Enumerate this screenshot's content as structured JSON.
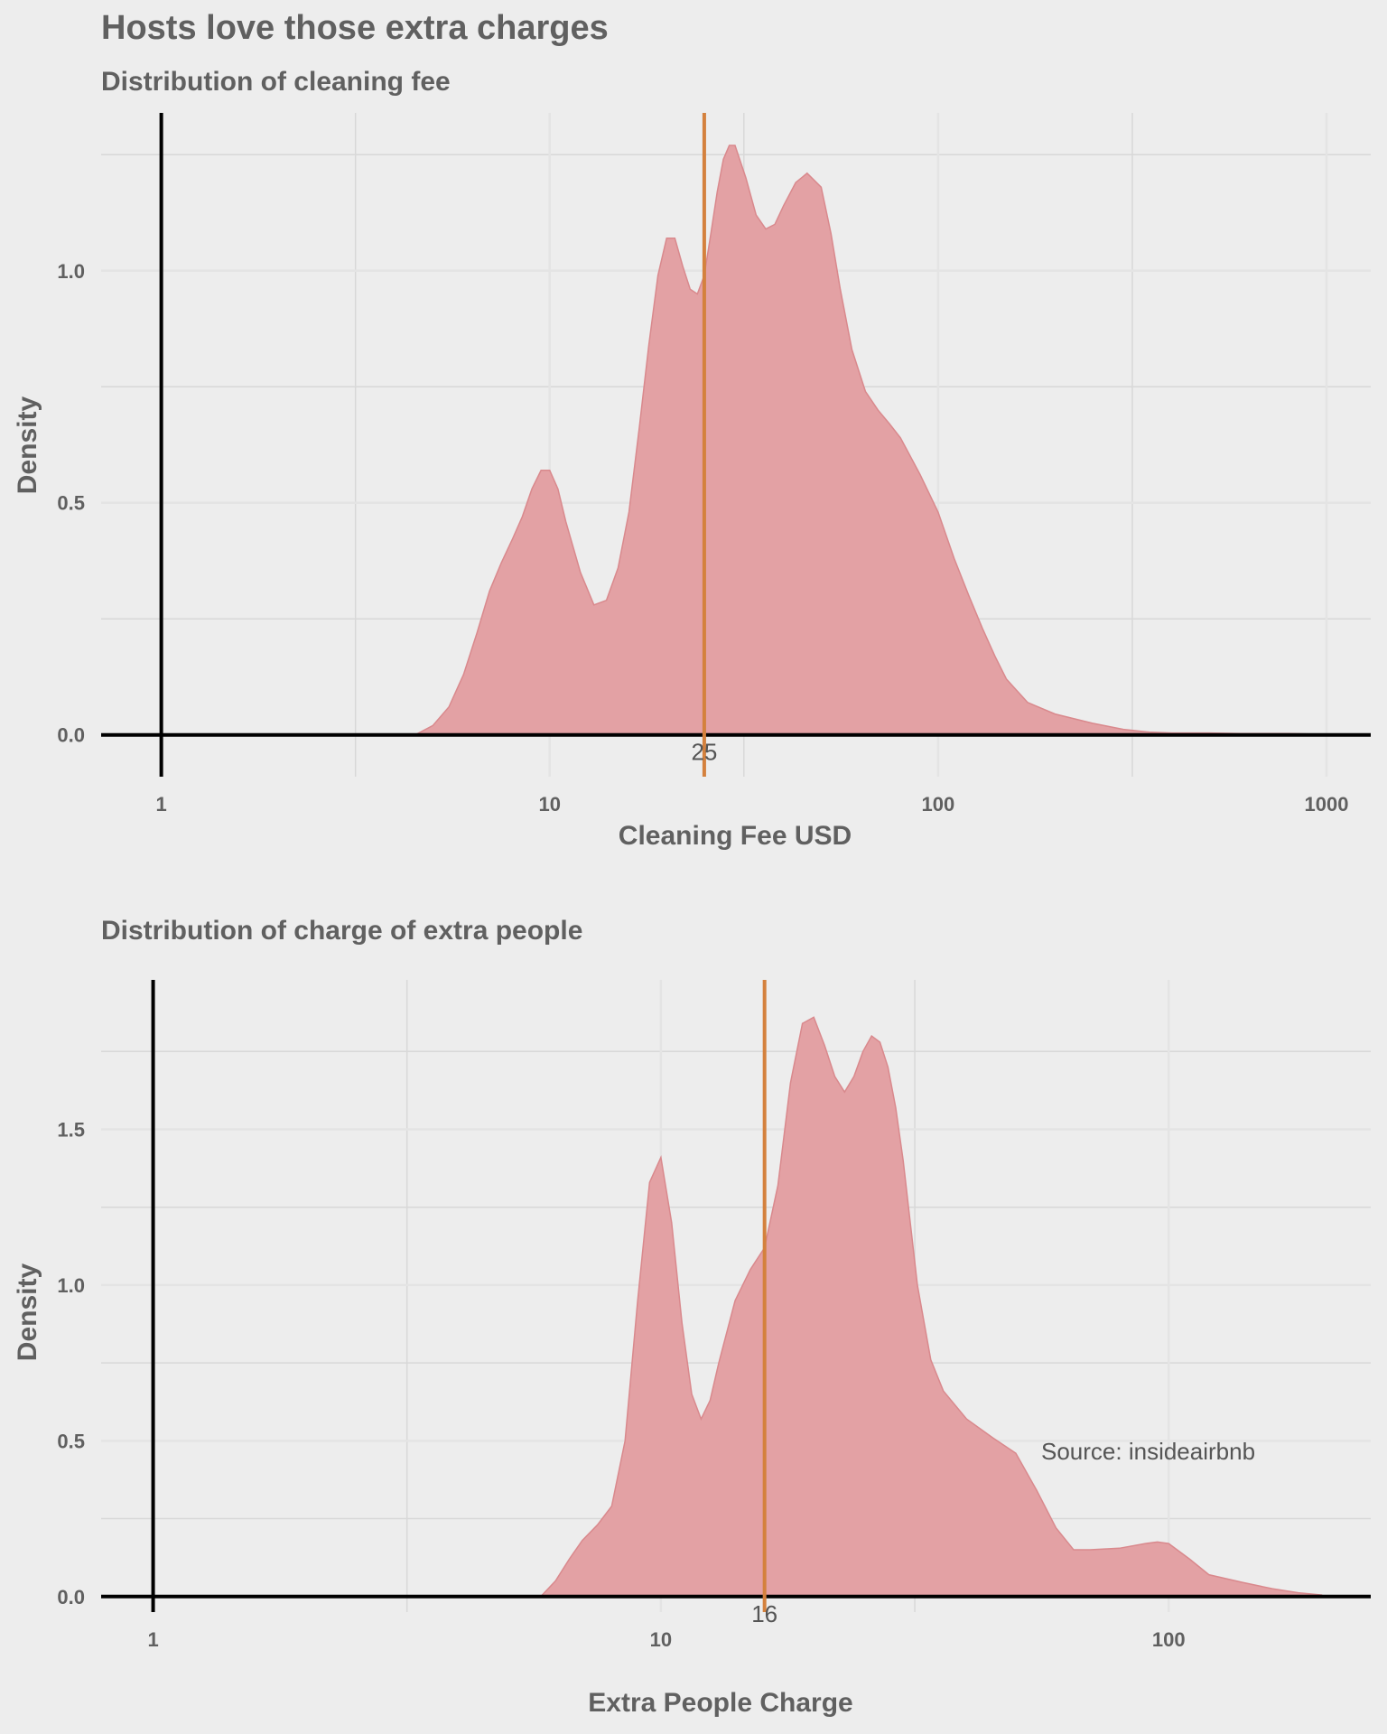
{
  "title": "Hosts love those extra charges",
  "colors": {
    "background": "#ededed",
    "fill": "#e3a1a4",
    "fill_stroke": "#d9898d",
    "median_line": "#d4813d",
    "grid_major": "#e4e4e4",
    "grid_minor": "#d8d8d8",
    "axis": "#000000"
  },
  "chart_data": [
    {
      "type": "area",
      "subtitle": "Distribution of cleaning fee",
      "xlabel": "Cleaning Fee USD",
      "ylabel": "Density",
      "x_scale": "log10",
      "xlim": [
        0.7,
        1300
      ],
      "ylim": [
        -0.09,
        1.34
      ],
      "x_ticks": [
        1,
        10,
        100,
        1000
      ],
      "x_tick_labels": [
        "1",
        "10",
        "100",
        "1000"
      ],
      "y_ticks": [
        0.0,
        0.5,
        1.0
      ],
      "y_tick_labels": [
        "0.0",
        "0.5",
        "1.0"
      ],
      "median": 25,
      "median_label": "25",
      "grid": true,
      "x": [
        4.5,
        5,
        5.5,
        6,
        6.5,
        7,
        7.5,
        8,
        8.5,
        9,
        9.5,
        10,
        10.5,
        11,
        12,
        13,
        14,
        15,
        16,
        17,
        18,
        19,
        20,
        21,
        22,
        23,
        24,
        25,
        26,
        27,
        28,
        29,
        30,
        32,
        34,
        36,
        38,
        40,
        43,
        46,
        50,
        53,
        56,
        60,
        65,
        70,
        75,
        80,
        90,
        100,
        110,
        120,
        130,
        140,
        150,
        170,
        200,
        250,
        300,
        350,
        400,
        500,
        600,
        700,
        800,
        900
      ],
      "y": [
        0.0,
        0.02,
        0.06,
        0.13,
        0.22,
        0.31,
        0.37,
        0.42,
        0.47,
        0.53,
        0.57,
        0.57,
        0.53,
        0.46,
        0.35,
        0.28,
        0.29,
        0.36,
        0.48,
        0.66,
        0.84,
        0.99,
        1.07,
        1.07,
        1.01,
        0.96,
        0.95,
        0.99,
        1.08,
        1.17,
        1.24,
        1.27,
        1.27,
        1.2,
        1.12,
        1.09,
        1.1,
        1.14,
        1.19,
        1.21,
        1.18,
        1.08,
        0.96,
        0.83,
        0.74,
        0.7,
        0.67,
        0.64,
        0.56,
        0.48,
        0.38,
        0.3,
        0.23,
        0.17,
        0.12,
        0.07,
        0.045,
        0.025,
        0.012,
        0.006,
        0.004,
        0.004,
        0.003,
        0.003,
        0.003,
        0.002
      ]
    },
    {
      "type": "area",
      "subtitle": "Distribution of charge of extra people",
      "xlabel": "Extra People Charge",
      "ylabel": "Density",
      "x_scale": "log10",
      "xlim": [
        0.79,
        250
      ],
      "ylim": [
        -0.05,
        1.98
      ],
      "x_ticks": [
        1,
        10,
        100
      ],
      "x_tick_labels": [
        "1",
        "10",
        "100"
      ],
      "y_ticks": [
        0.0,
        0.5,
        1.0,
        1.5
      ],
      "y_tick_labels": [
        "0.0",
        "0.5",
        "1.0",
        "1.5"
      ],
      "median": 16,
      "median_label": "16",
      "grid": true,
      "annotation": "Source: insideairbnb",
      "annotation_x": 56,
      "annotation_y": 0.5,
      "x": [
        5.8,
        6.2,
        6.6,
        7,
        7.5,
        8,
        8.5,
        9,
        9.5,
        10,
        10.5,
        11,
        11.5,
        12,
        12.5,
        13,
        14,
        15,
        16,
        17,
        18,
        19,
        20,
        21,
        22,
        23,
        24,
        25,
        26,
        27,
        28,
        29,
        30,
        32,
        34,
        36,
        40,
        45,
        50,
        55,
        60,
        65,
        70,
        80,
        90,
        95,
        100,
        110,
        120,
        140,
        160,
        180,
        200
      ],
      "y": [
        0.0,
        0.05,
        0.12,
        0.18,
        0.23,
        0.29,
        0.5,
        0.95,
        1.33,
        1.41,
        1.2,
        0.88,
        0.65,
        0.57,
        0.63,
        0.75,
        0.95,
        1.05,
        1.12,
        1.32,
        1.65,
        1.84,
        1.86,
        1.77,
        1.67,
        1.62,
        1.67,
        1.75,
        1.8,
        1.78,
        1.7,
        1.57,
        1.4,
        1.0,
        0.76,
        0.66,
        0.57,
        0.51,
        0.46,
        0.34,
        0.22,
        0.15,
        0.15,
        0.155,
        0.17,
        0.175,
        0.17,
        0.12,
        0.07,
        0.045,
        0.025,
        0.012,
        0.005
      ]
    }
  ]
}
